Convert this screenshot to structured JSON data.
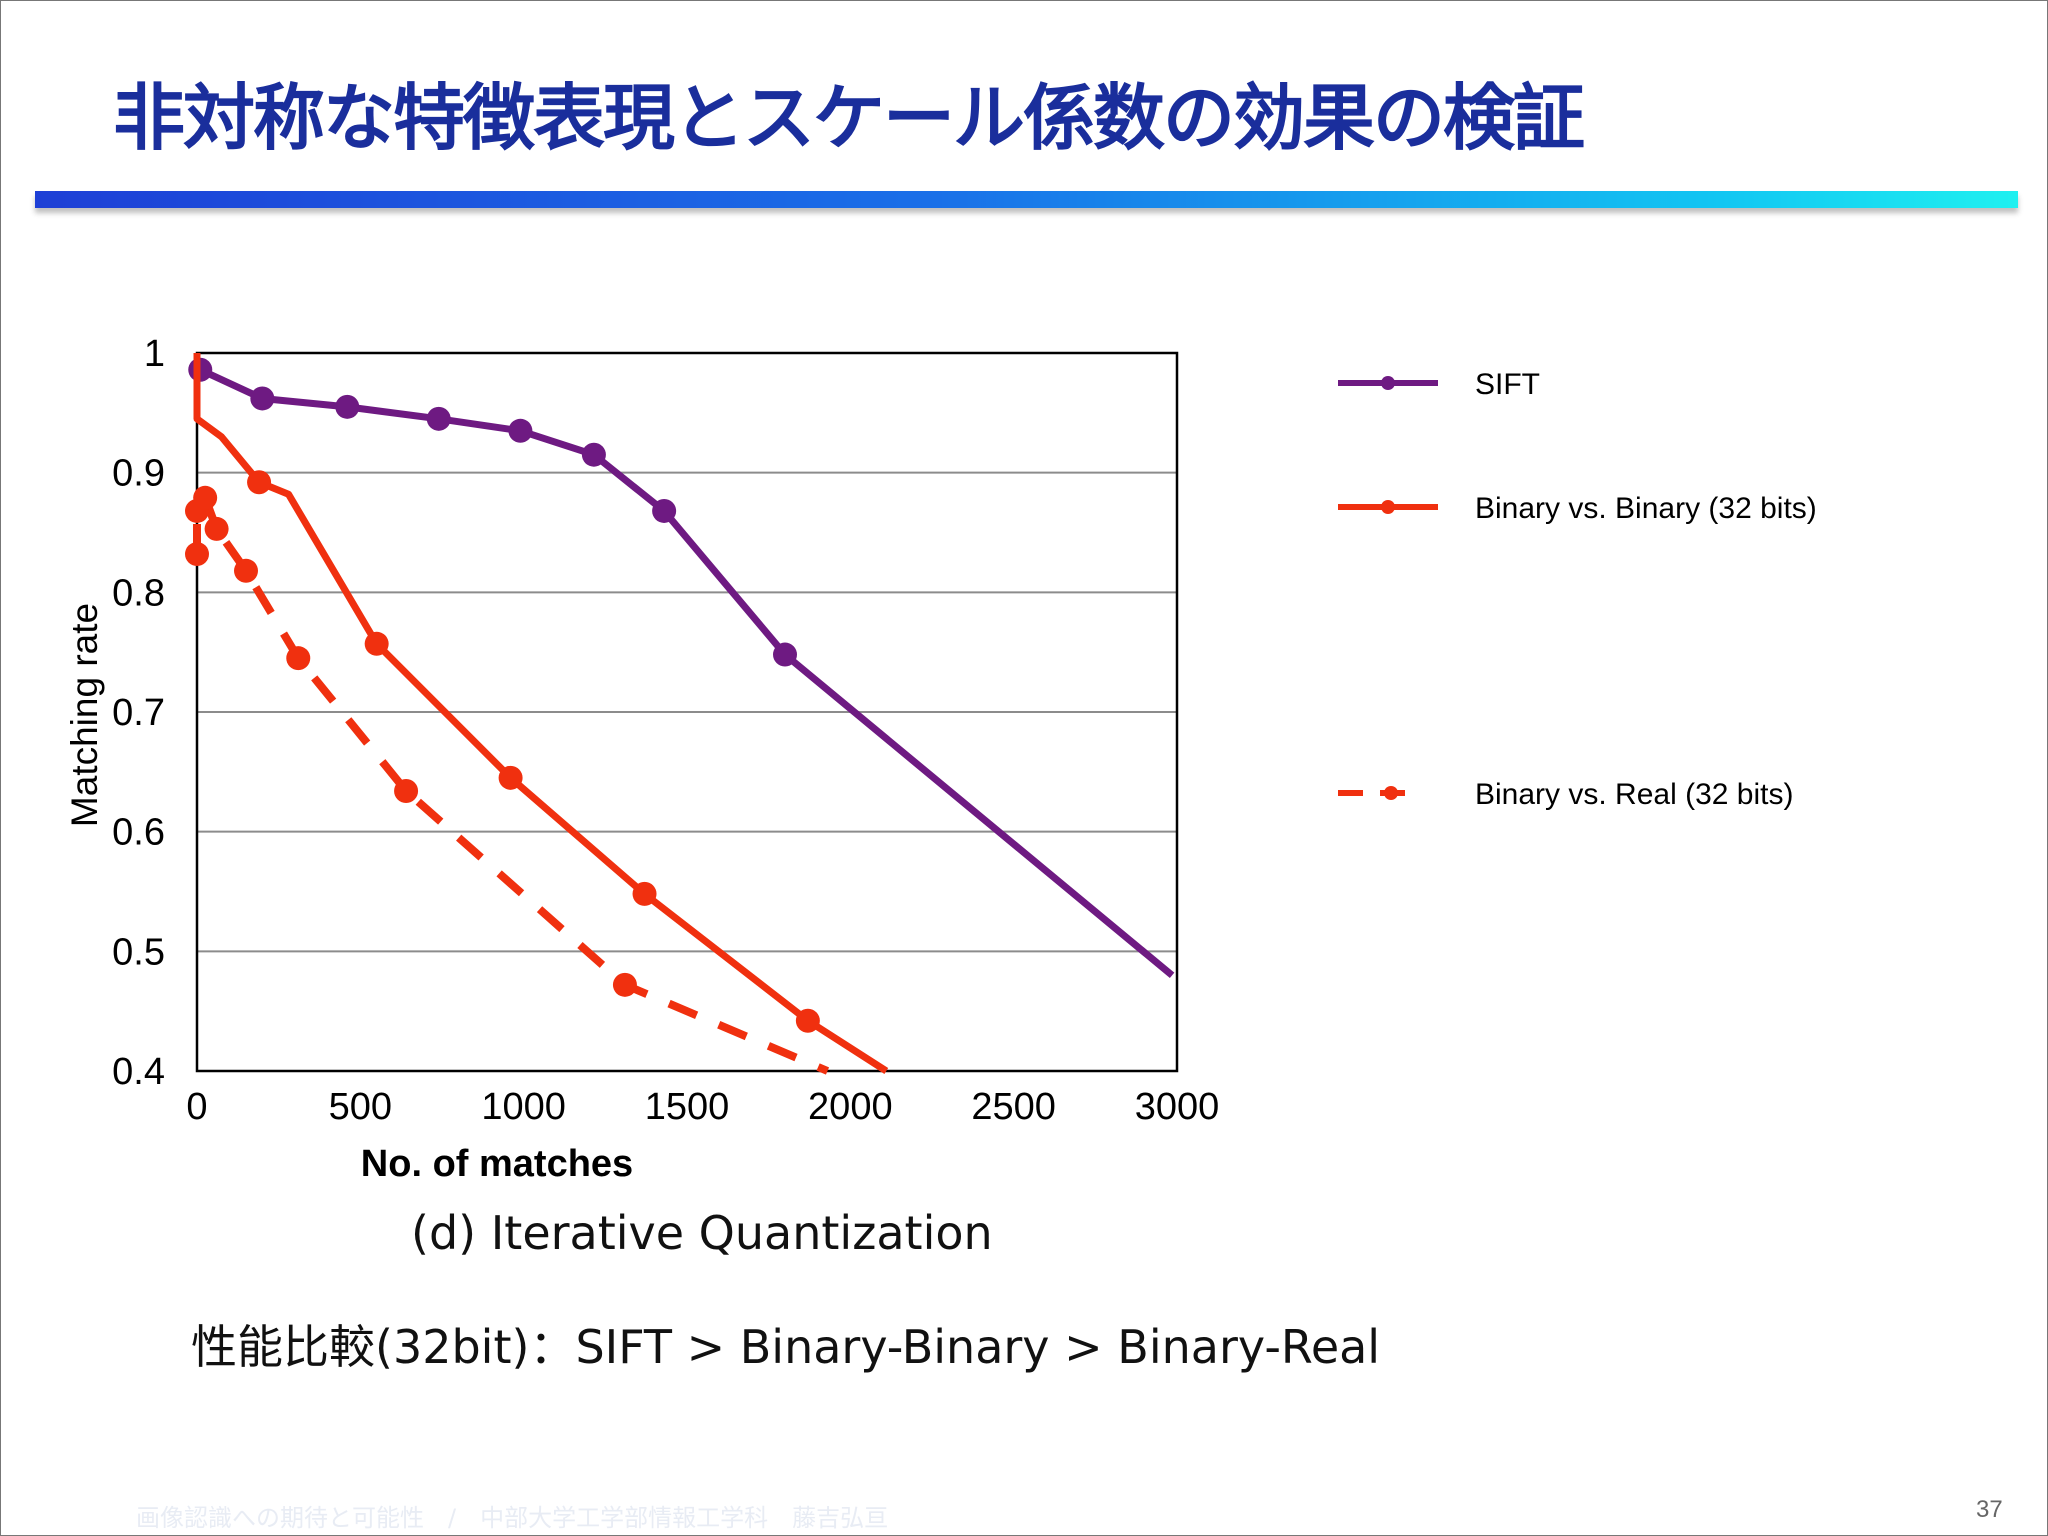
{
  "slide": {
    "title": "非対称な特徴表現とスケール係数の効果の検証",
    "caption": "(d) Iterative Quantization",
    "comparison": "性能比較(32bit)：SIFT > Binary-Binary > Binary-Real",
    "footer": "画像認識への期待と可能性　/　中部大学工学部情報工学科　藤吉弘亘",
    "page_number": "37",
    "colors": {
      "title": "#1a2e9c",
      "bar_start": "#1d3fd6",
      "bar_end": "#1ff0f0"
    }
  },
  "chart_data": {
    "type": "line",
    "xlabel": "No. of matches",
    "ylabel": "Matching rate",
    "xlim": [
      0,
      3000
    ],
    "ylim": [
      0.4,
      1
    ],
    "x_ticks": [
      {
        "value": 0,
        "label": "0"
      },
      {
        "value": 500,
        "label": "500"
      },
      {
        "value": 1000,
        "label": "1000"
      },
      {
        "value": 1500,
        "label": "1500"
      },
      {
        "value": 2000,
        "label": "2000"
      },
      {
        "value": 2500,
        "label": "2500"
      },
      {
        "value": 3000,
        "label": "3000"
      }
    ],
    "y_ticks": [
      {
        "value": 1,
        "label": "1"
      },
      {
        "value": 0.9,
        "label": "0.9"
      },
      {
        "value": 0.8,
        "label": "0.8"
      },
      {
        "value": 0.7,
        "label": "0.7"
      },
      {
        "value": 0.6,
        "label": "0.6"
      },
      {
        "value": 0.5,
        "label": "0.5"
      },
      {
        "value": 0.4,
        "label": "0.4"
      }
    ],
    "grid": "horizontal",
    "legend_position": "right",
    "series": [
      {
        "name": "SIFT",
        "color": "#6e1a82",
        "style": "solid",
        "points": [
          [
            10,
            0.986
          ],
          [
            200,
            0.962
          ],
          [
            460,
            0.955
          ],
          [
            740,
            0.945
          ],
          [
            990,
            0.935
          ],
          [
            1215,
            0.915
          ],
          [
            1430,
            0.868
          ],
          [
            1800,
            0.748
          ],
          [
            2985,
            0.48
          ]
        ],
        "markers": [
          [
            10,
            0.986
          ],
          [
            200,
            0.962
          ],
          [
            460,
            0.955
          ],
          [
            740,
            0.945
          ],
          [
            990,
            0.935
          ],
          [
            1215,
            0.915
          ],
          [
            1430,
            0.868
          ],
          [
            1800,
            0.748
          ]
        ]
      },
      {
        "name": "Binary vs. Binary (32 bits)",
        "color": "#f0300f",
        "style": "solid",
        "points": [
          [
            0,
            1.0
          ],
          [
            0,
            0.945
          ],
          [
            75,
            0.93
          ],
          [
            190,
            0.892
          ],
          [
            280,
            0.882
          ],
          [
            550,
            0.757
          ],
          [
            960,
            0.645
          ],
          [
            1370,
            0.548
          ],
          [
            1870,
            0.442
          ],
          [
            2110,
            0.4
          ]
        ],
        "markers": [
          [
            190,
            0.892
          ],
          [
            550,
            0.757
          ],
          [
            960,
            0.645
          ],
          [
            1370,
            0.548
          ],
          [
            1870,
            0.442
          ]
        ]
      },
      {
        "name": "Binary vs. Real (32 bits)",
        "color": "#f0300f",
        "style": "dashed",
        "points": [
          [
            0,
            0.832
          ],
          [
            0,
            0.868
          ],
          [
            25,
            0.879
          ],
          [
            60,
            0.853
          ],
          [
            150,
            0.818
          ],
          [
            310,
            0.745
          ],
          [
            640,
            0.634
          ],
          [
            1310,
            0.472
          ],
          [
            1930,
            0.4
          ]
        ],
        "markers": [
          [
            0,
            0.832
          ],
          [
            0,
            0.868
          ],
          [
            25,
            0.879
          ],
          [
            60,
            0.853
          ],
          [
            150,
            0.818
          ],
          [
            310,
            0.745
          ],
          [
            640,
            0.634
          ],
          [
            1310,
            0.472
          ]
        ]
      }
    ]
  }
}
